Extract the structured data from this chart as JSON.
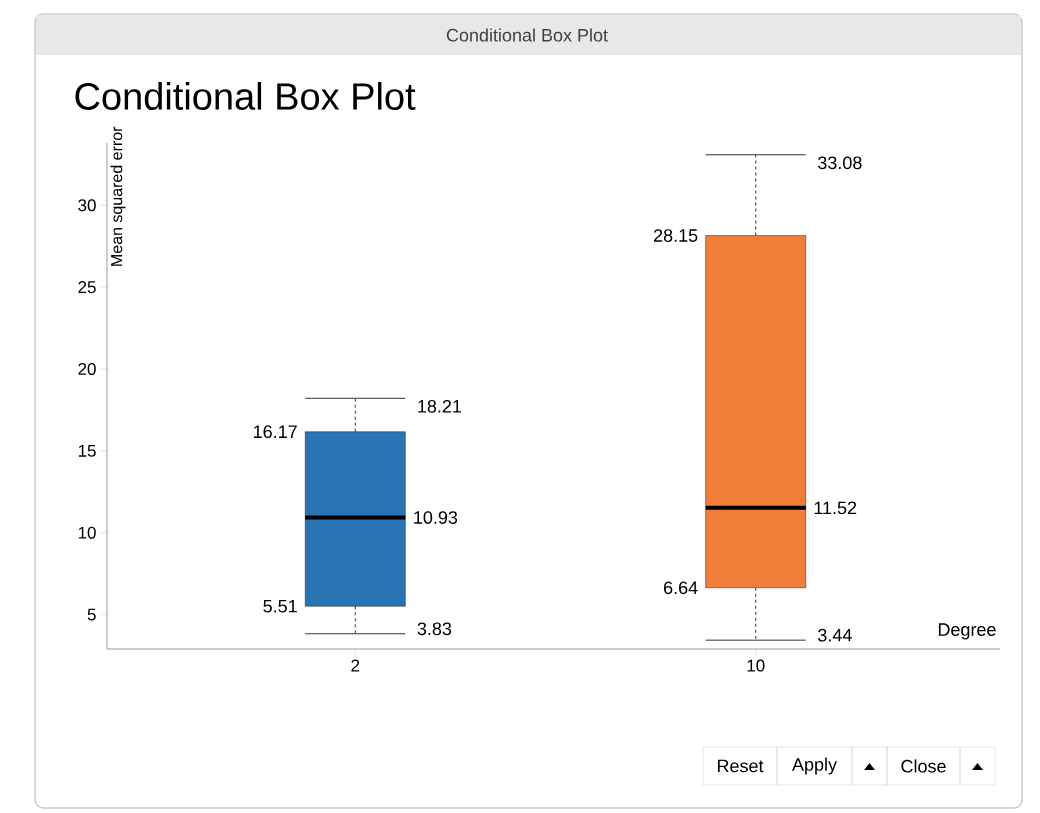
{
  "chart_data": {
    "type": "box",
    "title": "Conditional Box Plot",
    "xlabel": "Degree",
    "ylabel": "Mean squared error",
    "categories": [
      "2",
      "10"
    ],
    "boxes": [
      {
        "low": 3.83,
        "q1": 5.51,
        "median": 10.93,
        "q3": 16.17,
        "high": 18.21
      },
      {
        "low": 3.44,
        "q1": 6.64,
        "median": 11.52,
        "q3": 28.15,
        "high": 33.08
      }
    ],
    "colors": [
      "#2874b4",
      "#f07e38"
    ],
    "ylim": [
      2.9,
      33.8
    ],
    "yticks": [
      5,
      10,
      15,
      20,
      25,
      30
    ],
    "annotations": [
      "Conditional Box Plot",
      "Reset",
      "Apply",
      "Close",
      "16.17",
      "5.51",
      "18.21",
      "10.93",
      "3.83",
      "28.15",
      "6.64",
      "33.08",
      "11.52",
      "3.44"
    ]
  }
}
